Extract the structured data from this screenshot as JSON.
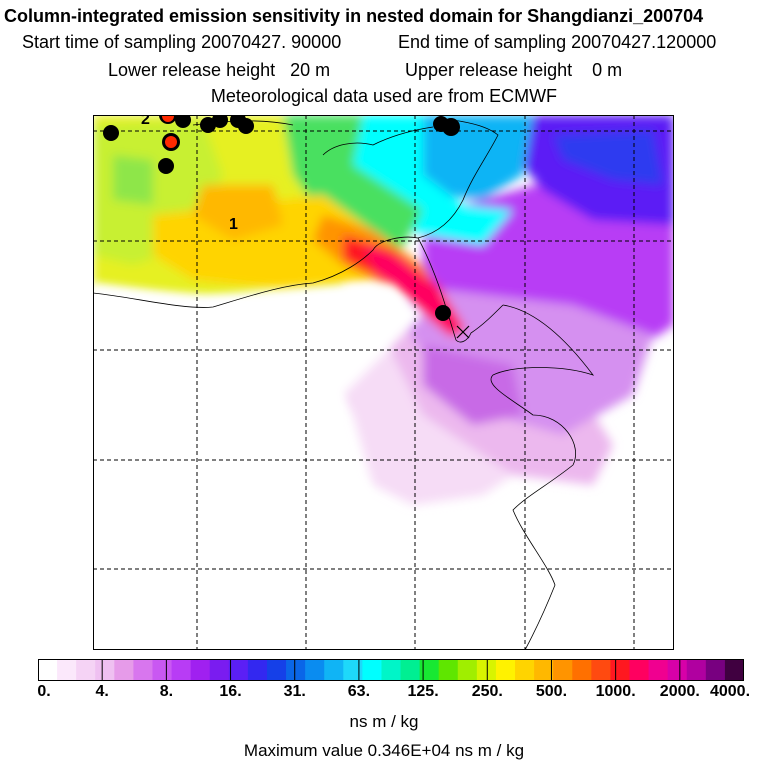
{
  "title": "Column-integrated emission sensitivity in nested domain for Shangdianzi_200704",
  "sampling": {
    "start": "Start time of sampling 20070427. 90000",
    "end": "End time of sampling 20070427.120000"
  },
  "release": {
    "lower": "Lower release height   20 m",
    "upper": "Upper release height    0 m"
  },
  "met_data": "Meteorological data used are from ECMWF",
  "map_labels": {
    "contour_1": "1",
    "contour_2": "2"
  },
  "colorbar": {
    "ticks": [
      "0.",
      "4.",
      "8.",
      "16.",
      "31.",
      "63.",
      "125.",
      "250.",
      "500.",
      "1000.",
      "2000.",
      "4000."
    ],
    "colors": [
      "#ffffff",
      "#fbe8fb",
      "#f5d3f5",
      "#efc0f1",
      "#e69be9",
      "#d876ee",
      "#c958f2",
      "#b83cf5",
      "#a020f0",
      "#7a1cf0",
      "#5b1ff5",
      "#3328f0",
      "#1540e8",
      "#0a66e8",
      "#0a8cf0",
      "#10b4f5",
      "#1ed8fa",
      "#00ffff",
      "#00f5c8",
      "#00ef92",
      "#18e832",
      "#5fe600",
      "#a0ee00",
      "#d8f400",
      "#fff200",
      "#ffd400",
      "#ffb800",
      "#ff9400",
      "#ff7000",
      "#ff4a10",
      "#ff1820",
      "#ff0060",
      "#f00090",
      "#d800a8",
      "#b000a0",
      "#780080",
      "#400040"
    ],
    "units": "ns m / kg",
    "max_value": "Maximum value  0.346E+04 ns m / kg"
  },
  "station_marker": "x-marker-icon"
}
